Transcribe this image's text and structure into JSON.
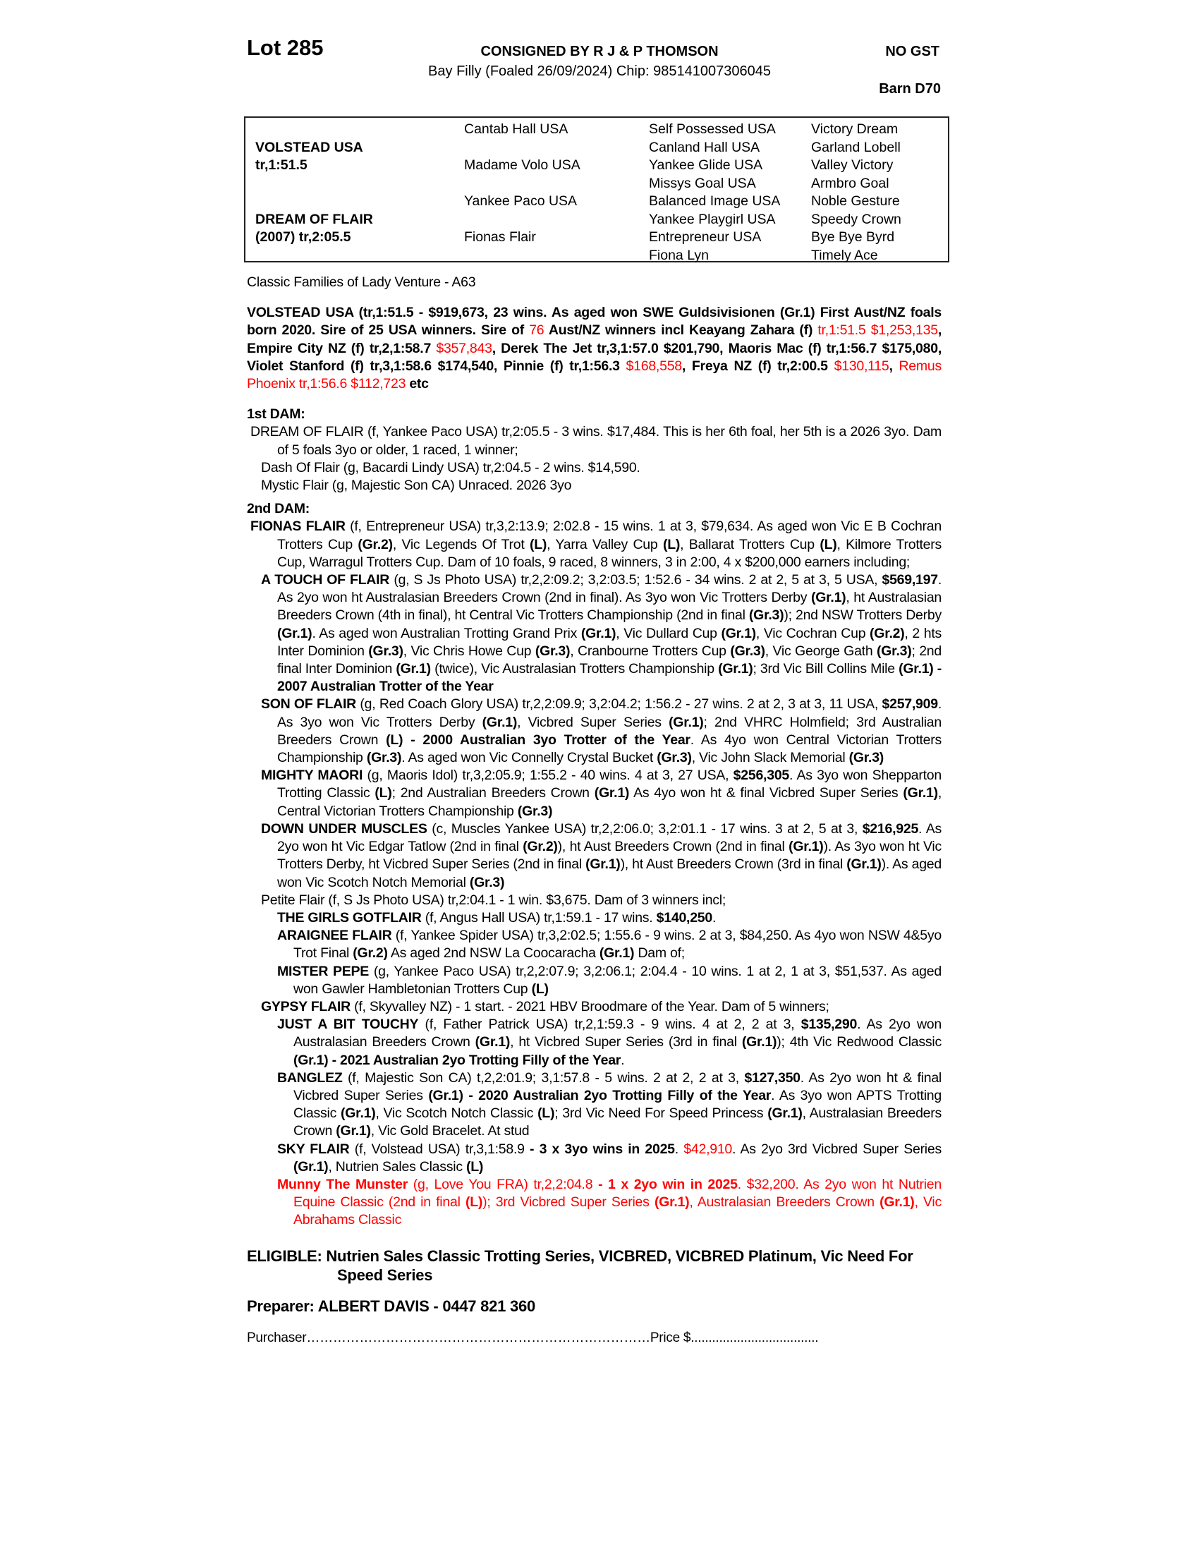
{
  "header": {
    "lot": "Lot 285",
    "consigned": "CONSIGNED BY R J & P THOMSON",
    "description": "Bay Filly (Foaled 26/09/2024) Chip: 985141007306045",
    "gst": "NO GST",
    "barn": "Barn D70"
  },
  "pedigree": {
    "sire": [
      "VOLSTEAD USA",
      "tr,1:51.5"
    ],
    "dam": [
      "DREAM OF FLAIR",
      "(2007) tr,2:05.5"
    ],
    "gen2": [
      "Cantab Hall USA",
      "Madame Volo USA",
      "Yankee Paco USA",
      "Fionas Flair"
    ],
    "gen3": [
      "Self Possessed USA",
      "Canland Hall USA",
      "Yankee Glide USA",
      "Missys Goal USA",
      "Balanced Image USA",
      "Yankee Playgirl USA",
      "Entrepreneur USA",
      "Fiona Lyn"
    ],
    "gen4": [
      "Victory Dream",
      "Garland Lobell",
      "Valley Victory",
      "Armbro Goal",
      "Noble Gesture",
      "Speedy Crown",
      "Bye Bye Byrd",
      "Timely Ace"
    ]
  },
  "family": "Classic Families of Lady Venture - A63",
  "sire_para": [
    [
      "VOLSTEAD USA (tr,1:51.5 - $919,673, 23 wins. As aged won SWE Guldsivisionen (Gr.1) First Aust/NZ foals born 2020. Sire of 25 USA winners. Sire of ",
      "b"
    ],
    [
      "76",
      "r"
    ],
    [
      " Aust/NZ winners incl Keayang Zahara (f) ",
      "b"
    ],
    [
      "tr,1:51.5 $1,253,135",
      "r"
    ],
    [
      ", Empire City NZ (f) tr,2,1:58.7 ",
      "b"
    ],
    [
      "$357,843",
      "r"
    ],
    [
      ", Derek The Jet tr,3,1:57.0 $201,790, Maoris Mac (f) tr,1:56.7 $175,080, Violet Stanford (f) tr,3,1:58.6 $174,540, Pinnie (f) tr,1:56.3 ",
      "b"
    ],
    [
      "$168,558",
      "r"
    ],
    [
      ", Freya NZ (f) tr,2:00.5 ",
      "b"
    ],
    [
      "$130,115",
      "r"
    ],
    [
      ", ",
      "b"
    ],
    [
      "Remus Phoenix tr,1:56.6 $112,723",
      "r"
    ],
    [
      " etc",
      "b"
    ]
  ],
  "first_dam": {
    "heading": "1st DAM:",
    "entries": [
      {
        "level": 0,
        "runs": [
          [
            "DREAM OF FLAIR (f, Yankee Paco USA) tr,2:05.5 - 3 wins. $17,484. This is her 6th foal, her 5th is a 2026 3yo. Dam of 5 foals 3yo or older, 1 raced, 1 winner;",
            ""
          ]
        ]
      },
      {
        "level": 1,
        "runs": [
          [
            "Dash Of Flair (g, Bacardi Lindy USA) tr,2:04.5 - 2 wins. $14,590.",
            ""
          ]
        ]
      },
      {
        "level": 1,
        "runs": [
          [
            "Mystic Flair (g, Majestic Son CA) Unraced. 2026 3yo",
            ""
          ]
        ]
      }
    ]
  },
  "second_dam": {
    "heading": "2nd DAM:",
    "entries": [
      {
        "level": 0,
        "runs": [
          [
            "FIONAS FLAIR",
            "b"
          ],
          [
            " (f, Entrepreneur USA) tr,3,2:13.9; 2:02.8 - 15 wins. 1 at 3, $79,634. As aged won Vic E B Cochran Trotters Cup ",
            ""
          ],
          [
            "(Gr.2)",
            "b"
          ],
          [
            ", Vic Legends Of Trot ",
            ""
          ],
          [
            "(L)",
            "b"
          ],
          [
            ", Yarra Valley Cup ",
            ""
          ],
          [
            "(L)",
            "b"
          ],
          [
            ", Ballarat Trotters Cup ",
            ""
          ],
          [
            "(L)",
            "b"
          ],
          [
            ", Kilmore Trotters Cup, Warragul Trotters Cup. Dam of 10 foals, 9 raced, 8 winners, 3 in 2:00, 4 x $200,000 earners including;",
            ""
          ]
        ]
      },
      {
        "level": 1,
        "runs": [
          [
            "A TOUCH OF FLAIR",
            "b"
          ],
          [
            " (g, S Js Photo USA) tr,2,2:09.2; 3,2:03.5; 1:52.6 - 34 wins. 2 at 2, 5 at 3, 5 USA, ",
            ""
          ],
          [
            "$569,197",
            "b"
          ],
          [
            ". As 2yo won ht Australasian Breeders Crown (2nd in final). As 3yo won Vic Trotters Derby ",
            ""
          ],
          [
            "(Gr.1)",
            "b"
          ],
          [
            ", ht Australasian Breeders Crown (4th in final), ht Central Vic Trotters Championship (2nd in final ",
            ""
          ],
          [
            "(Gr.3)",
            "b"
          ],
          [
            "); 2nd NSW Trotters Derby ",
            ""
          ],
          [
            "(Gr.1)",
            "b"
          ],
          [
            ". As aged won Australian Trotting Grand Prix ",
            ""
          ],
          [
            "(Gr.1)",
            "b"
          ],
          [
            ", Vic Dullard Cup ",
            ""
          ],
          [
            "(Gr.1)",
            "b"
          ],
          [
            ", Vic Cochran Cup ",
            ""
          ],
          [
            "(Gr.2)",
            "b"
          ],
          [
            ", 2 hts Inter Dominion ",
            ""
          ],
          [
            "(Gr.3)",
            "b"
          ],
          [
            ", Vic Chris Howe Cup ",
            ""
          ],
          [
            "(Gr.3)",
            "b"
          ],
          [
            ", Cranbourne Trotters Cup ",
            ""
          ],
          [
            "(Gr.3)",
            "b"
          ],
          [
            ", Vic George Gath ",
            ""
          ],
          [
            "(Gr.3)",
            "b"
          ],
          [
            "; 2nd final Inter Dominion ",
            ""
          ],
          [
            "(Gr.1)",
            "b"
          ],
          [
            " (twice), Vic Australasian Trotters Championship ",
            ""
          ],
          [
            "(Gr.1)",
            "b"
          ],
          [
            "; 3rd Vic Bill Collins Mile ",
            ""
          ],
          [
            "(Gr.1) - 2007 Australian Trotter of the Year",
            "b"
          ]
        ]
      },
      {
        "level": 1,
        "runs": [
          [
            "SON OF FLAIR",
            "b"
          ],
          [
            " (g, Red Coach Glory USA) tr,2,2:09.9; 3,2:04.2; 1:56.2 - 27 wins. 2 at 2, 3 at 3, 11 USA, ",
            ""
          ],
          [
            "$257,909",
            "b"
          ],
          [
            ". As 3yo won Vic Trotters Derby ",
            ""
          ],
          [
            "(Gr.1)",
            "b"
          ],
          [
            ", Vicbred Super Series ",
            ""
          ],
          [
            "(Gr.1)",
            "b"
          ],
          [
            "; 2nd VHRC Holmfield; 3rd Australian Breeders Crown ",
            ""
          ],
          [
            "(L) - 2000 Australian 3yo Trotter of the Year",
            "b"
          ],
          [
            ". As 4yo won Central Victorian Trotters Championship ",
            ""
          ],
          [
            "(Gr.3)",
            "b"
          ],
          [
            ". As aged won Vic Connelly Crystal Bucket ",
            ""
          ],
          [
            "(Gr.3)",
            "b"
          ],
          [
            ", Vic John Slack Memorial ",
            ""
          ],
          [
            "(Gr.3)",
            "b"
          ]
        ]
      },
      {
        "level": 1,
        "runs": [
          [
            "MIGHTY MAORI",
            "b"
          ],
          [
            " (g, Maoris Idol) tr,3,2:05.9; 1:55.2 - 40 wins. 4 at 3, 27 USA, ",
            ""
          ],
          [
            "$256,305",
            "b"
          ],
          [
            ". As 3yo won Shepparton Trotting Classic ",
            ""
          ],
          [
            "(L)",
            "b"
          ],
          [
            "; 2nd Australian Breeders Crown ",
            ""
          ],
          [
            "(Gr.1)",
            "b"
          ],
          [
            " As 4yo won ht & final Vicbred Super Series ",
            ""
          ],
          [
            "(Gr.1)",
            "b"
          ],
          [
            ", Central Victorian Trotters Championship ",
            ""
          ],
          [
            "(Gr.3)",
            "b"
          ]
        ]
      },
      {
        "level": 1,
        "runs": [
          [
            "DOWN UNDER MUSCLES",
            "b"
          ],
          [
            " (c, Muscles Yankee USA) tr,2,2:06.0; 3,2:01.1 - 17 wins. 3 at 2, 5 at 3, ",
            ""
          ],
          [
            "$216,925",
            "b"
          ],
          [
            ". As 2yo won ht Vic Edgar Tatlow (2nd in final ",
            ""
          ],
          [
            "(Gr.2)",
            "b"
          ],
          [
            "), ht Aust Breeders Crown (2nd in final ",
            ""
          ],
          [
            "(Gr.1)",
            "b"
          ],
          [
            "). As 3yo won ht Vic Trotters Derby, ht Vicbred Super Series (2nd in final ",
            ""
          ],
          [
            "(Gr.1)",
            "b"
          ],
          [
            "), ht Aust Breeders Crown (3rd in final ",
            ""
          ],
          [
            "(Gr.1)",
            "b"
          ],
          [
            "). As aged won Vic Scotch Notch Memorial ",
            ""
          ],
          [
            "(Gr.3)",
            "b"
          ]
        ]
      },
      {
        "level": 1,
        "runs": [
          [
            "Petite Flair (f, S Js Photo USA) tr,2:04.1 - 1 win. $3,675. Dam of 3 winners incl;",
            ""
          ]
        ]
      },
      {
        "level": 2,
        "runs": [
          [
            "THE GIRLS GOTFLAIR",
            "b"
          ],
          [
            " (f, Angus Hall USA) tr,1:59.1 - 17 wins. ",
            ""
          ],
          [
            "$140,250",
            "b"
          ],
          [
            ".",
            ""
          ]
        ]
      },
      {
        "level": 2,
        "runs": [
          [
            "ARAIGNEE FLAIR",
            "b"
          ],
          [
            " (f, Yankee Spider USA) tr,3,2:02.5; 1:55.6 - 9 wins. 2 at 3, $84,250. As 4yo won NSW 4&5yo Trot Final ",
            ""
          ],
          [
            "(Gr.2)",
            "b"
          ],
          [
            " As aged 2nd NSW La Coocaracha ",
            ""
          ],
          [
            "(Gr.1)",
            "b"
          ],
          [
            " Dam of;",
            ""
          ]
        ]
      },
      {
        "level": 2,
        "runs": [
          [
            "MISTER PEPE",
            "b"
          ],
          [
            " (g, Yankee Paco USA) tr,2,2:07.9; 3,2:06.1; 2:04.4 - 10 wins. 1 at 2, 1 at 3, $51,537. As aged won Gawler Hambletonian Trotters Cup ",
            ""
          ],
          [
            "(L)",
            "b"
          ]
        ]
      },
      {
        "level": 1,
        "runs": [
          [
            "GYPSY FLAIR",
            "b"
          ],
          [
            " (f, Skyvalley NZ) - 1 start. - 2021 HBV Broodmare of the Year. Dam of 5 winners;",
            ""
          ]
        ]
      },
      {
        "level": 2,
        "runs": [
          [
            "JUST A BIT TOUCHY",
            "b"
          ],
          [
            " (f, Father Patrick USA) tr,2,1:59.3 - 9 wins. 4 at 2, 2 at 3, ",
            ""
          ],
          [
            "$135,290",
            "b"
          ],
          [
            ". As 2yo won Australasian Breeders Crown ",
            ""
          ],
          [
            "(Gr.1)",
            "b"
          ],
          [
            ", ht Vicbred Super Series (3rd in final ",
            ""
          ],
          [
            "(Gr.1)",
            "b"
          ],
          [
            "); 4th Vic Redwood Classic ",
            ""
          ],
          [
            "(Gr.1) - 2021 Australian 2yo Trotting Filly of the Year",
            "b"
          ],
          [
            ".",
            ""
          ]
        ]
      },
      {
        "level": 2,
        "runs": [
          [
            "BANGLEZ",
            "b"
          ],
          [
            " (f, Majestic Son CA) t,2,2:01.9; 3,1:57.8 - 5 wins. 2 at 2, 2 at 3, ",
            ""
          ],
          [
            "$127,350",
            "b"
          ],
          [
            ". As 2yo won ht & final Vicbred Super Series ",
            ""
          ],
          [
            "(Gr.1) - 2020 Australian 2yo Trotting Filly of the Year",
            "b"
          ],
          [
            ". As 3yo won APTS Trotting Classic ",
            ""
          ],
          [
            "(Gr.1)",
            "b"
          ],
          [
            ", Vic Scotch Notch Classic ",
            ""
          ],
          [
            "(L)",
            "b"
          ],
          [
            "; 3rd Vic Need For Speed Princess ",
            ""
          ],
          [
            "(Gr.1)",
            "b"
          ],
          [
            ", Australasian Breeders Crown ",
            ""
          ],
          [
            "(Gr.1)",
            "b"
          ],
          [
            ", Vic Gold Bracelet. At stud",
            ""
          ]
        ]
      },
      {
        "level": 2,
        "runs": [
          [
            "SKY FLAIR",
            "b"
          ],
          [
            " (f, Volstead USA) tr,3,1:58.9 ",
            ""
          ],
          [
            "- 3 x 3yo wins in 2025",
            "b"
          ],
          [
            ". ",
            ""
          ],
          [
            "$42,910",
            "r"
          ],
          [
            ". As 2yo 3rd Vicbred Super Series ",
            ""
          ],
          [
            "(Gr.1)",
            "b"
          ],
          [
            ", Nutrien Sales Classic ",
            ""
          ],
          [
            "(L)",
            "b"
          ]
        ]
      },
      {
        "level": 2,
        "runs": [
          [
            "Munny The Munster",
            "br"
          ],
          [
            " (g, Love You FRA) tr,2,2:04.8 ",
            "r"
          ],
          [
            "- 1 x 2yo win in 2025",
            "br"
          ],
          [
            ". $32,200. As 2yo won ht Nutrien Equine Classic (2nd in final ",
            "r"
          ],
          [
            "(L)",
            "br"
          ],
          [
            "); 3rd Vicbred Super Series ",
            "r"
          ],
          [
            "(Gr.1)",
            "br"
          ],
          [
            ", Australasian Breeders Crown ",
            "r"
          ],
          [
            "(Gr.1)",
            "br"
          ],
          [
            ", Vic Abrahams Classic",
            "r"
          ]
        ]
      }
    ]
  },
  "eligible": "ELIGIBLE: Nutrien Sales Classic Trotting Series, VICBRED, VICBRED Platinum, Vic Need For Speed Series",
  "preparer": "Preparer: ALBERT DAVIS - 0447 821 360",
  "purchaser": "Purchaser……………………………………………………………………Price $....................................",
  "colors": {
    "text": "#000000",
    "highlight": "#ff0000"
  }
}
